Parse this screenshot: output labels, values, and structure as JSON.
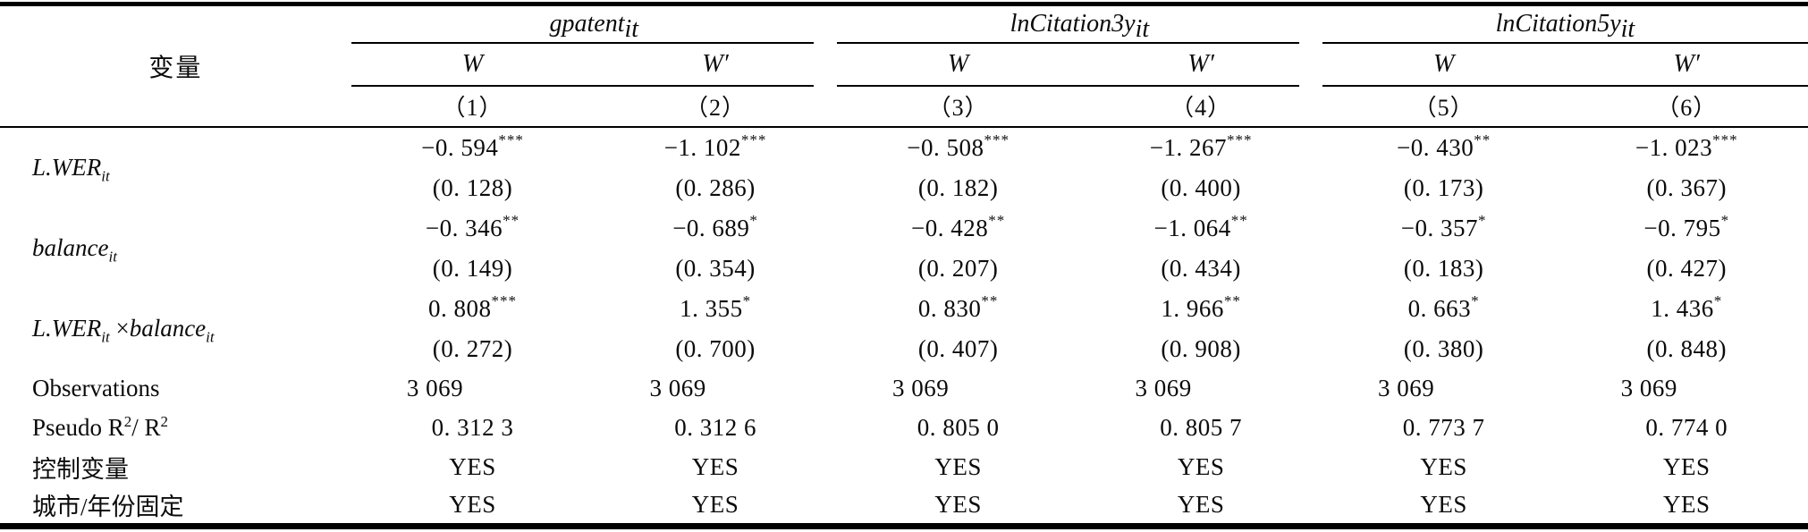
{
  "table": {
    "corner_label": "变量",
    "groups": [
      {
        "name": "gpatent",
        "subscript": "it",
        "cols": [
          "W",
          "W′"
        ]
      },
      {
        "name": "lnCitation3y",
        "subscript": "it",
        "cols": [
          "W",
          "W′"
        ]
      },
      {
        "name": "lnCitation5y",
        "subscript": "it",
        "cols": [
          "W",
          "W′"
        ]
      }
    ],
    "col_numbers": [
      "（1）",
      "（2）",
      "（3）",
      "（4）",
      "（5）",
      "（6）"
    ],
    "rows": [
      {
        "label": [
          {
            "t": "L.WER",
            "s": "i"
          },
          {
            "t": "it",
            "s": "isub"
          }
        ],
        "coefs": [
          {
            "v": "−0. 594",
            "stars": "***"
          },
          {
            "v": "−1. 102",
            "stars": "***"
          },
          {
            "v": "−0. 508",
            "stars": "***"
          },
          {
            "v": "−1. 267",
            "stars": "***"
          },
          {
            "v": "−0. 430",
            "stars": "**"
          },
          {
            "v": "−1. 023",
            "stars": "***"
          }
        ],
        "ses": [
          "(0. 128)",
          "(0. 286)",
          "(0. 182)",
          "(0. 400)",
          "(0. 173)",
          "(0. 367)"
        ]
      },
      {
        "label": [
          {
            "t": "balance",
            "s": "i"
          },
          {
            "t": "it",
            "s": "isub"
          }
        ],
        "coefs": [
          {
            "v": "−0. 346",
            "stars": "**"
          },
          {
            "v": "−0. 689",
            "stars": "*"
          },
          {
            "v": "−0. 428",
            "stars": "**"
          },
          {
            "v": "−1. 064",
            "stars": "**"
          },
          {
            "v": "−0. 357",
            "stars": "*"
          },
          {
            "v": "−0. 795",
            "stars": "*"
          }
        ],
        "ses": [
          "(0. 149)",
          "(0. 354)",
          "(0. 207)",
          "(0. 434)",
          "(0. 183)",
          "(0. 427)"
        ]
      },
      {
        "label": [
          {
            "t": "L.WER",
            "s": "i"
          },
          {
            "t": "it",
            "s": "isub"
          },
          {
            "t": " ×",
            "s": "n"
          },
          {
            "t": "balance",
            "s": "i"
          },
          {
            "t": "it",
            "s": "isub"
          }
        ],
        "coefs": [
          {
            "v": "0. 808",
            "stars": "***"
          },
          {
            "v": "1. 355",
            "stars": "*"
          },
          {
            "v": "0. 830",
            "stars": "**"
          },
          {
            "v": "1. 966",
            "stars": "**"
          },
          {
            "v": "0. 663",
            "stars": "*"
          },
          {
            "v": "1. 436",
            "stars": "*"
          }
        ],
        "ses": [
          "(0. 272)",
          "(0. 700)",
          "(0. 407)",
          "(0. 908)",
          "(0. 380)",
          "(0. 848)"
        ]
      }
    ],
    "stat_rows": [
      {
        "label": [
          {
            "t": "Observations",
            "s": "n"
          }
        ],
        "values": [
          "3 069",
          "3 069",
          "3 069",
          "3 069",
          "3 069",
          "3 069"
        ]
      },
      {
        "label": [
          {
            "t": "Pseudo R",
            "s": "n"
          },
          {
            "t": "2",
            "s": "sup"
          },
          {
            "t": "/ R",
            "s": "n"
          },
          {
            "t": "2",
            "s": "sup"
          }
        ],
        "values": [
          "0. 312 3",
          "0. 312 6",
          "0. 805 0",
          "0. 805 7",
          "0. 773 7",
          "0. 774 0"
        ]
      },
      {
        "label": [
          {
            "t": "控制变量",
            "s": "n"
          }
        ],
        "values": [
          "YES",
          "YES",
          "YES",
          "YES",
          "YES",
          "YES"
        ]
      },
      {
        "label": [
          {
            "t": "城市/年份固定",
            "s": "n"
          }
        ],
        "values": [
          "YES",
          "YES",
          "YES",
          "YES",
          "YES",
          "YES"
        ]
      }
    ]
  }
}
